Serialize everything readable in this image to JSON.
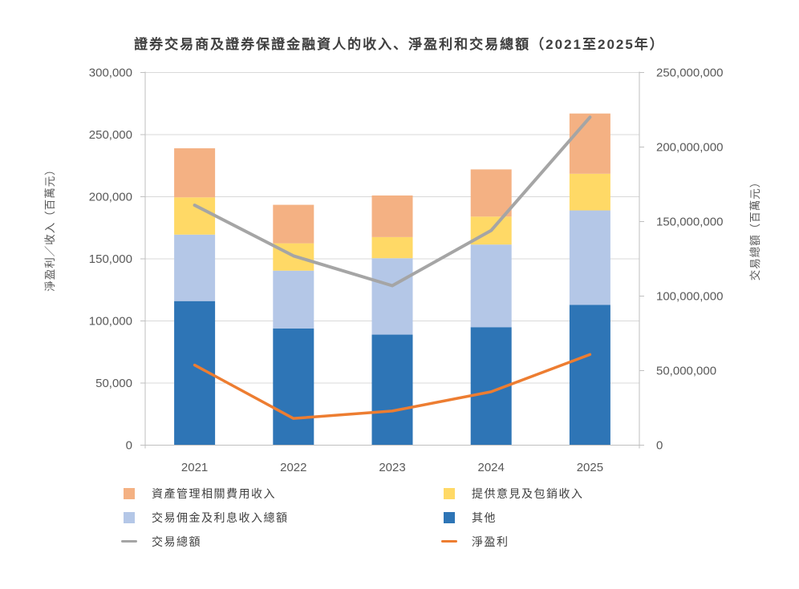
{
  "chart_data": {
    "type": "combo-stacked-bar-line",
    "title": "證券交易商及證券保證金融資人的收入、淨盈利和交易總額（2021至2025年）",
    "categories": [
      "2021",
      "2022",
      "2023",
      "2024",
      "2025"
    ],
    "stacked_series": [
      {
        "id": "others",
        "name": "其他",
        "color": "#2E75B6",
        "values": [
          116000,
          94000,
          89000,
          95000,
          113000
        ]
      },
      {
        "id": "commission-interest-income",
        "name": "交易佣金及利息收入總額",
        "color": "#B4C7E7",
        "values": [
          53500,
          46500,
          61500,
          66500,
          76000
        ]
      },
      {
        "id": "advisory-underwriting-income",
        "name": "提供意見及包銷收入",
        "color": "#FFD966",
        "values": [
          30000,
          22000,
          17000,
          22500,
          29500
        ]
      },
      {
        "id": "asset-management-fee-income",
        "name": "資產管理相關費用收入",
        "color": "#F4B183",
        "values": [
          39500,
          31000,
          33500,
          38000,
          48500
        ]
      }
    ],
    "line_series": [
      {
        "id": "total-transactions",
        "name": "交易總額",
        "color": "#A5A5A5",
        "axis": "right",
        "width": 4,
        "values": [
          161000000,
          127000000,
          107000000,
          144000000,
          220000000
        ]
      },
      {
        "id": "net-profit",
        "name": "淨盈利",
        "color": "#ED7D31",
        "axis": "left",
        "width": 3.5,
        "values": [
          64500,
          21500,
          27500,
          43000,
          73000
        ]
      }
    ],
    "left_axis": {
      "title": "淨盈利／收入（百萬元）",
      "min": 0,
      "max": 300000,
      "step": 50000,
      "tick_labels": [
        "0",
        "50,000",
        "100,000",
        "150,000",
        "200,000",
        "250,000",
        "300,000"
      ]
    },
    "right_axis": {
      "title": "交易總額（百萬元）",
      "min": 0,
      "max": 250000000,
      "step": 50000000,
      "tick_labels": [
        "0",
        "50,000,000",
        "100,000,000",
        "150,000,000",
        "200,000,000",
        "250,000,000"
      ]
    },
    "grid": true,
    "legend_position": "bottom",
    "colors": {
      "grid": "#D9D9D9",
      "axis": "#BFBFBF",
      "label": "#595959",
      "title": "#3F3F3F"
    }
  },
  "legend": {
    "items": [
      {
        "label": "資產管理相關費用收入",
        "color": "#F4B183",
        "marker": "square"
      },
      {
        "label": "提供意見及包銷收入",
        "color": "#FFD966",
        "marker": "square"
      },
      {
        "label": "交易佣金及利息收入總額",
        "color": "#B4C7E7",
        "marker": "square"
      },
      {
        "label": "其他",
        "color": "#2E75B6",
        "marker": "square"
      },
      {
        "label": "交易總額",
        "color": "#A5A5A5",
        "marker": "line"
      },
      {
        "label": "淨盈利",
        "color": "#ED7D31",
        "marker": "line"
      }
    ]
  }
}
